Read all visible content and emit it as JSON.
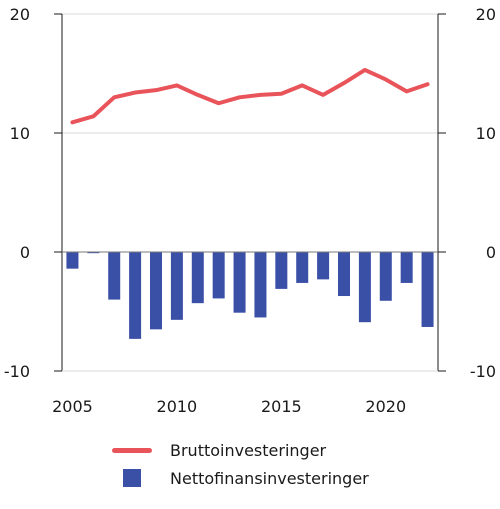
{
  "chart_data": {
    "type": "bar+line",
    "title": "",
    "xlabel": "",
    "ylabel": "",
    "ylim": [
      -10,
      20
    ],
    "yticks": [
      -10,
      0,
      10,
      20
    ],
    "ytick_labels": [
      "-10",
      "0",
      "10",
      "20"
    ],
    "xlim": [
      2004.5,
      2022.5
    ],
    "xticks": [
      2005,
      2010,
      2015,
      2020
    ],
    "xtick_labels": [
      "2005",
      "2010",
      "2015",
      "2020"
    ],
    "x": [
      2005,
      2006,
      2007,
      2008,
      2009,
      2010,
      2011,
      2012,
      2013,
      2014,
      2015,
      2016,
      2017,
      2018,
      2019,
      2020,
      2021,
      2022
    ],
    "grid": true,
    "legend_position": "bottom",
    "series": [
      {
        "name": "Bruttoinvesteringer",
        "kind": "line",
        "color": "#e8545a",
        "values": [
          10.9,
          11.4,
          13.0,
          13.4,
          13.6,
          14.0,
          13.2,
          12.5,
          13.0,
          13.2,
          13.3,
          14.0,
          13.2,
          14.2,
          15.3,
          14.5,
          13.5,
          14.1
        ]
      },
      {
        "name": "Nettofinansinvesteringer",
        "kind": "bar",
        "color": "#3a4fa6",
        "values": [
          -1.4,
          -0.1,
          -4.0,
          -7.3,
          -6.5,
          -5.7,
          -4.3,
          -3.9,
          -5.1,
          -5.5,
          -3.1,
          -2.6,
          -2.3,
          -3.7,
          -5.9,
          -4.1,
          -2.6,
          -6.3
        ]
      }
    ]
  }
}
